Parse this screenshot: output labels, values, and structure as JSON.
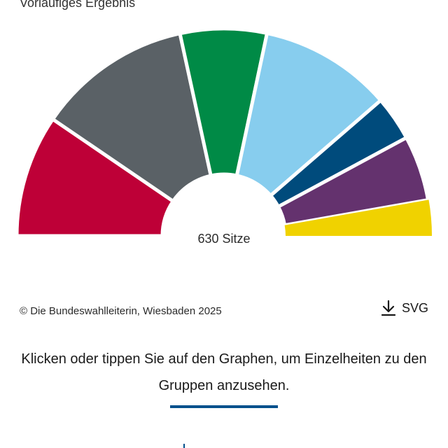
{
  "header": {
    "subtitle": "Vorläufiges Ergebnis"
  },
  "chart_data": {
    "type": "pie",
    "variant": "parliament-semicircle",
    "total_label": "630 Sitze",
    "total": 630,
    "segments": [
      {
        "seats": 120,
        "color": "#be0037"
      },
      {
        "seats": 152,
        "color": "#5a6166"
      },
      {
        "seats": 85,
        "color": "#008a46"
      },
      {
        "seats": 130,
        "color": "#87cdee"
      },
      {
        "seats": 44,
        "color": "#004b7c"
      },
      {
        "seats": 64,
        "color": "#64326e"
      }
    ],
    "remainder": {
      "color": "#f0d200"
    }
  },
  "footer": {
    "copyright": "© Die Bundeswahlleiterin, Wiesbaden 2025",
    "download_label": "SVG",
    "download_icon": "download-icon",
    "hint": "Klicken oder tippen Sie auf den Graphen, um Einzelheiten zu den Gruppen anzusehen."
  },
  "colors": {
    "accent": "#00508c"
  }
}
